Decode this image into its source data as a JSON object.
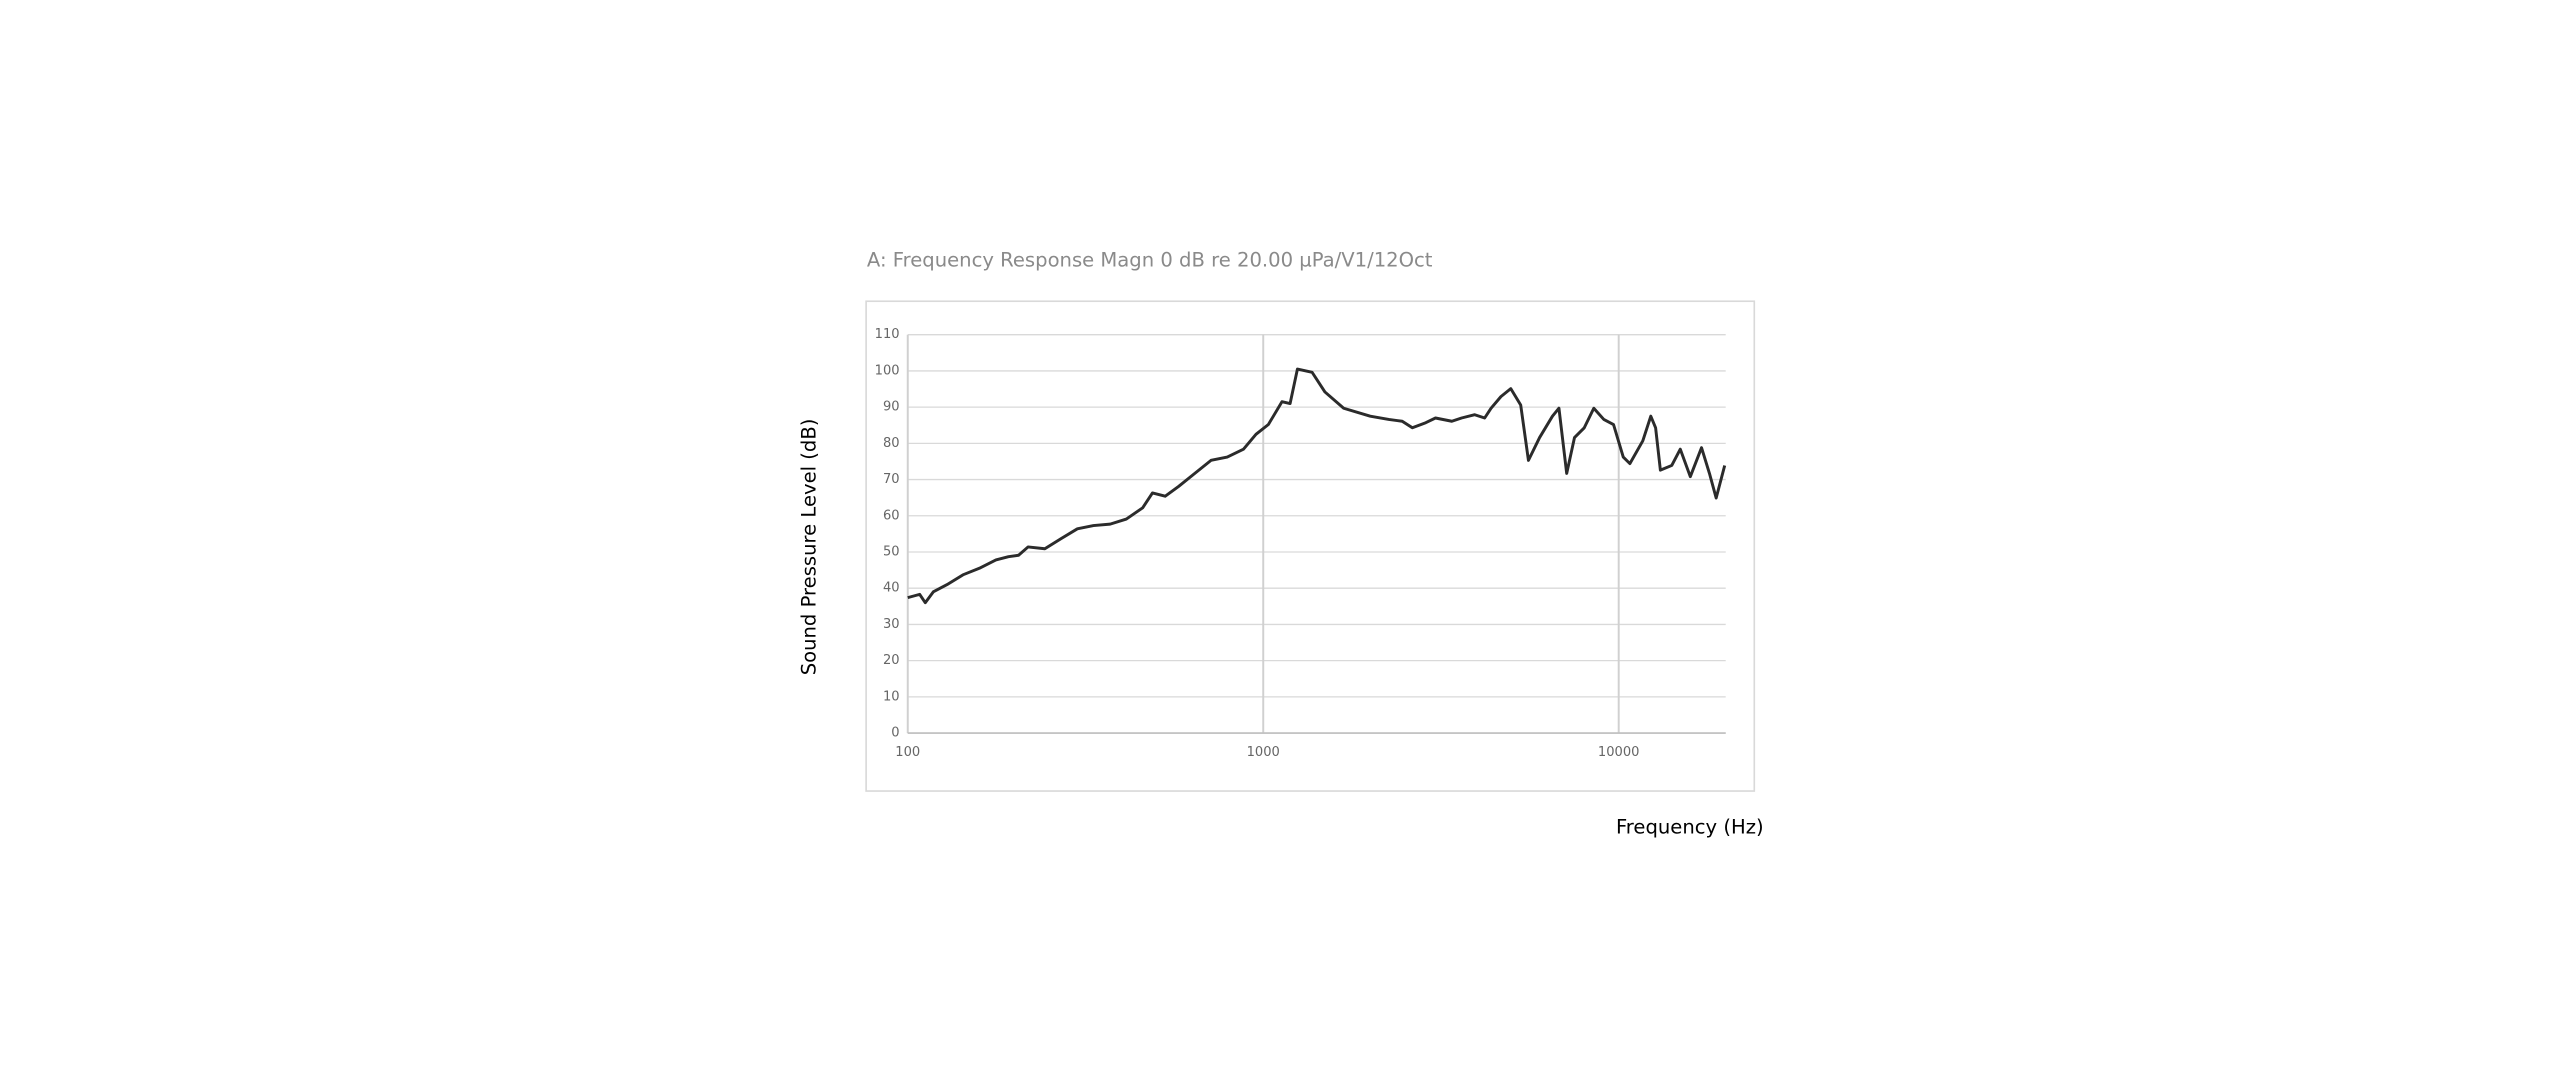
{
  "chart_data": {
    "type": "line",
    "title": "A: Frequency Response Magn 0 dB re 20.00 µPa/V1/12Oct",
    "xlabel": "Frequency (Hz)",
    "ylabel": "Sound Pressure Level (dB)",
    "xscale": "log",
    "grid": true,
    "color": "#2b2b2b",
    "xlim": [
      100,
      20000
    ],
    "xticks": [
      100,
      1000,
      10000
    ],
    "ylim": [
      0,
      110
    ],
    "yticks": [
      0,
      10,
      20,
      30,
      40,
      50,
      60,
      70,
      80,
      90,
      100,
      110
    ],
    "x": [
      100,
      108,
      112,
      118,
      129,
      143,
      159,
      177,
      192,
      205,
      218,
      243,
      270,
      300,
      333,
      371,
      412,
      458,
      488,
      530,
      578,
      642,
      713,
      792,
      880,
      954,
      1034,
      1129,
      1190,
      1248,
      1373,
      1491,
      1684,
      2000,
      2255,
      2460,
      2627,
      2865,
      3052,
      3393,
      3614,
      3935,
      4197,
      4375,
      4662,
      4970,
      5300,
      5573,
      5990,
      6510,
      6790,
      7140,
      7510,
      8000,
      8510,
      9080,
      9670,
      10300,
      10750,
      11690,
      12310,
      12700,
      13100,
      14100,
      14900,
      15900,
      17100,
      18000,
      18800,
      19870
    ],
    "values": [
      37.4,
      38.3,
      36,
      39,
      41,
      43.7,
      45.5,
      47.8,
      48.7,
      49.1,
      51.4,
      50.9,
      53.7,
      56.4,
      57.3,
      57.7,
      59.1,
      62.2,
      66.3,
      65.4,
      68.1,
      71.7,
      75.3,
      76.2,
      78.4,
      82.5,
      85.2,
      91.5,
      91,
      100.5,
      99.6,
      94.2,
      89.7,
      87.5,
      86.6,
      86.1,
      84.3,
      85.7,
      87,
      86.1,
      87,
      87.9,
      87,
      89.7,
      92.9,
      95.1,
      90.6,
      75.3,
      81.6,
      87.5,
      89.7,
      71.7,
      81.6,
      84.3,
      89.7,
      86.6,
      85.2,
      76.2,
      74.4,
      80.7,
      87.5,
      84.3,
      72.6,
      73.9,
      78.4,
      70.8,
      78.8,
      71.7,
      64.9,
      73.9
    ]
  }
}
